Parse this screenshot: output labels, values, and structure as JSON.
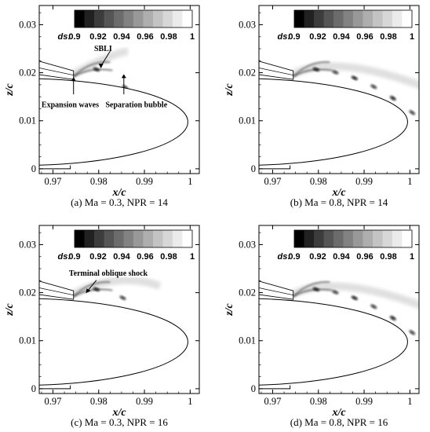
{
  "chart_data": [
    {
      "type": "heatmap",
      "caption": "(a) Ma = 0.3, NPR = 14",
      "xlabel": "x/c",
      "ylabel": "z/c",
      "xlim": [
        0.967,
        1.002
      ],
      "ylim": [
        -0.001,
        0.034
      ],
      "xticks": [
        "0.97",
        "0.98",
        "0.99",
        "1"
      ],
      "yticks": [
        "0",
        "0.01",
        "0.02",
        "0.03"
      ],
      "colorbar": {
        "variable": "ds:",
        "range": [
          0.9,
          1.0
        ],
        "ticks": [
          "0.9",
          "0.92",
          "0.94",
          "0.96",
          "0.98",
          "1"
        ]
      },
      "annotations": [
        {
          "text": "SBLI",
          "x": 0.979,
          "y": 0.0245
        },
        {
          "text": "Expansion waves",
          "x": 0.9675,
          "y": 0.0128
        },
        {
          "text": "Separation bubble",
          "x": 0.9815,
          "y": 0.0128
        }
      ]
    },
    {
      "type": "heatmap",
      "caption": "(b) Ma = 0.8, NPR = 14",
      "xlabel": "x/c",
      "ylabel": "z/c",
      "xlim": [
        0.967,
        1.002
      ],
      "ylim": [
        -0.001,
        0.034
      ],
      "xticks": [
        "0.97",
        "0.98",
        "0.99",
        "1"
      ],
      "yticks": [
        "0",
        "0.01",
        "0.02",
        "0.03"
      ],
      "colorbar": {
        "variable": "ds:",
        "range": [
          0.9,
          1.0
        ],
        "ticks": [
          "0.9",
          "0.92",
          "0.94",
          "0.96",
          "0.98",
          "1"
        ]
      },
      "annotations": []
    },
    {
      "type": "heatmap",
      "caption": "(c) Ma = 0.3, NPR = 16",
      "xlabel": "x/c",
      "ylabel": "z/c",
      "xlim": [
        0.967,
        1.002
      ],
      "ylim": [
        -0.001,
        0.034
      ],
      "xticks": [
        "0.97",
        "0.98",
        "0.99",
        "1"
      ],
      "yticks": [
        "0",
        "0.01",
        "0.02",
        "0.03"
      ],
      "colorbar": {
        "variable": "ds:",
        "range": [
          0.9,
          1.0
        ],
        "ticks": [
          "0.9",
          "0.92",
          "0.94",
          "0.96",
          "0.98",
          "1"
        ]
      },
      "annotations": [
        {
          "text": "Terminal oblique shock",
          "x": 0.9735,
          "y": 0.0235
        }
      ]
    },
    {
      "type": "heatmap",
      "caption": "(d) Ma = 0.8, NPR = 16",
      "xlabel": "x/c",
      "ylabel": "z/c",
      "xlim": [
        0.967,
        1.002
      ],
      "ylim": [
        -0.001,
        0.034
      ],
      "xticks": [
        "0.97",
        "0.98",
        "0.99",
        "1"
      ],
      "yticks": [
        "0",
        "0.01",
        "0.02",
        "0.03"
      ],
      "colorbar": {
        "variable": "ds:",
        "range": [
          0.9,
          1.0
        ],
        "ticks": [
          "0.9",
          "0.92",
          "0.94",
          "0.96",
          "0.98",
          "1"
        ]
      },
      "annotations": []
    }
  ]
}
